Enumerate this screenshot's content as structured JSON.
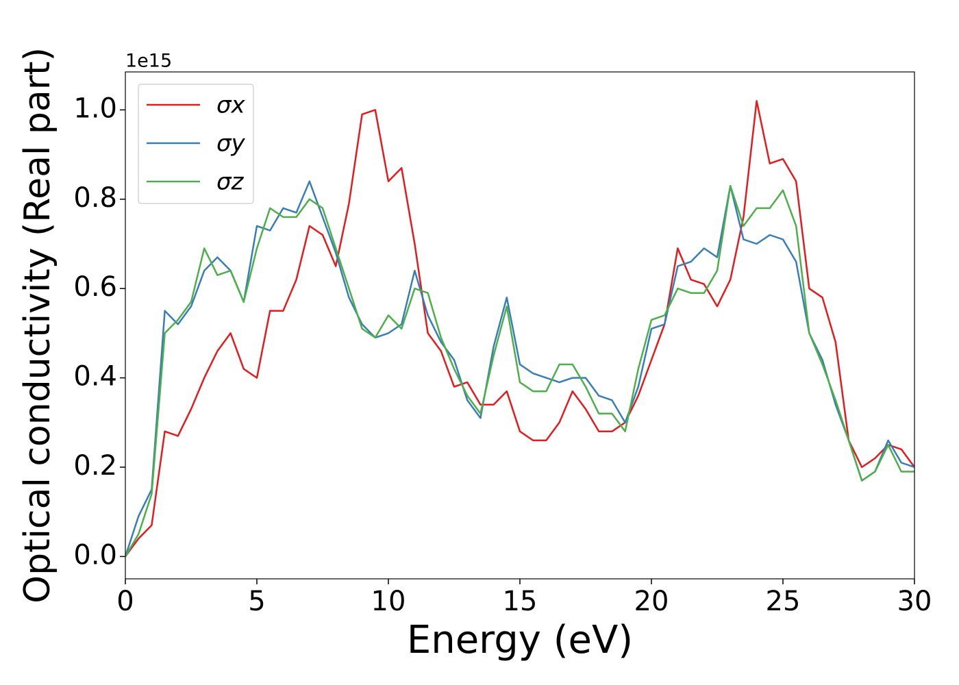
{
  "chart_data": {
    "type": "line",
    "xlabel": "Energy (eV)",
    "ylabel": "Optical conductivity (Real part)",
    "y_offset_label": "1e15",
    "x": [
      0,
      0.5,
      1,
      1.5,
      2,
      2.5,
      3,
      3.5,
      4,
      4.5,
      5,
      5.5,
      6,
      6.5,
      7,
      7.5,
      8,
      8.5,
      9,
      9.5,
      10,
      10.5,
      11,
      11.5,
      12,
      12.5,
      13,
      13.5,
      14,
      14.5,
      15,
      15.5,
      16,
      16.5,
      17,
      17.5,
      18,
      18.5,
      19,
      19.5,
      20,
      20.5,
      21,
      21.5,
      22,
      22.5,
      23,
      23.5,
      24,
      24.5,
      25,
      25.5,
      26,
      26.5,
      27,
      27.5,
      28,
      28.5,
      29,
      29.5,
      30
    ],
    "series": [
      {
        "name": "σx",
        "color": "#e41a1c",
        "values": [
          0.0,
          0.04,
          0.07,
          0.28,
          0.27,
          0.33,
          0.4,
          0.46,
          0.5,
          0.42,
          0.4,
          0.55,
          0.55,
          0.62,
          0.74,
          0.72,
          0.65,
          0.79,
          0.99,
          1.0,
          0.84,
          0.87,
          0.7,
          0.5,
          0.46,
          0.38,
          0.39,
          0.34,
          0.34,
          0.37,
          0.28,
          0.26,
          0.26,
          0.3,
          0.37,
          0.33,
          0.28,
          0.28,
          0.3,
          0.36,
          0.44,
          0.52,
          0.69,
          0.62,
          0.61,
          0.56,
          0.62,
          0.76,
          1.02,
          0.88,
          0.89,
          0.84,
          0.6,
          0.58,
          0.48,
          0.26,
          0.2,
          0.22,
          0.25,
          0.24,
          0.2
        ]
      },
      {
        "name": "σy",
        "color": "#377eb8",
        "values": [
          0.0,
          0.09,
          0.15,
          0.55,
          0.52,
          0.56,
          0.64,
          0.67,
          0.64,
          0.57,
          0.74,
          0.73,
          0.78,
          0.77,
          0.84,
          0.76,
          0.68,
          0.58,
          0.52,
          0.49,
          0.5,
          0.52,
          0.64,
          0.54,
          0.48,
          0.44,
          0.35,
          0.31,
          0.47,
          0.58,
          0.43,
          0.41,
          0.4,
          0.39,
          0.4,
          0.4,
          0.36,
          0.35,
          0.3,
          0.38,
          0.51,
          0.52,
          0.65,
          0.66,
          0.69,
          0.67,
          0.83,
          0.71,
          0.7,
          0.72,
          0.71,
          0.66,
          0.5,
          0.44,
          0.34,
          0.26,
          0.17,
          0.19,
          0.26,
          0.21,
          0.2
        ]
      },
      {
        "name": "σz",
        "color": "#4daf4a",
        "values": [
          0.0,
          0.05,
          0.14,
          0.5,
          0.53,
          0.57,
          0.69,
          0.63,
          0.64,
          0.57,
          0.69,
          0.78,
          0.76,
          0.76,
          0.8,
          0.78,
          0.69,
          0.6,
          0.51,
          0.49,
          0.54,
          0.51,
          0.6,
          0.59,
          0.49,
          0.42,
          0.36,
          0.32,
          0.45,
          0.56,
          0.39,
          0.37,
          0.37,
          0.43,
          0.43,
          0.38,
          0.32,
          0.32,
          0.28,
          0.42,
          0.53,
          0.54,
          0.6,
          0.59,
          0.59,
          0.64,
          0.83,
          0.74,
          0.78,
          0.78,
          0.82,
          0.74,
          0.5,
          0.43,
          0.35,
          0.26,
          0.17,
          0.19,
          0.25,
          0.19,
          0.19
        ]
      }
    ],
    "xlim": [
      0,
      30
    ],
    "xticks": [
      0,
      5,
      10,
      15,
      20,
      25,
      30
    ],
    "ylim": [
      -0.05,
      1.085
    ],
    "yticks": [
      {
        "value": 0,
        "label": "0.0"
      },
      0.2,
      0.4,
      0.6,
      0.8,
      {
        "value": 1,
        "label": "1.0"
      }
    ],
    "grid": false,
    "legend": "upper left"
  }
}
